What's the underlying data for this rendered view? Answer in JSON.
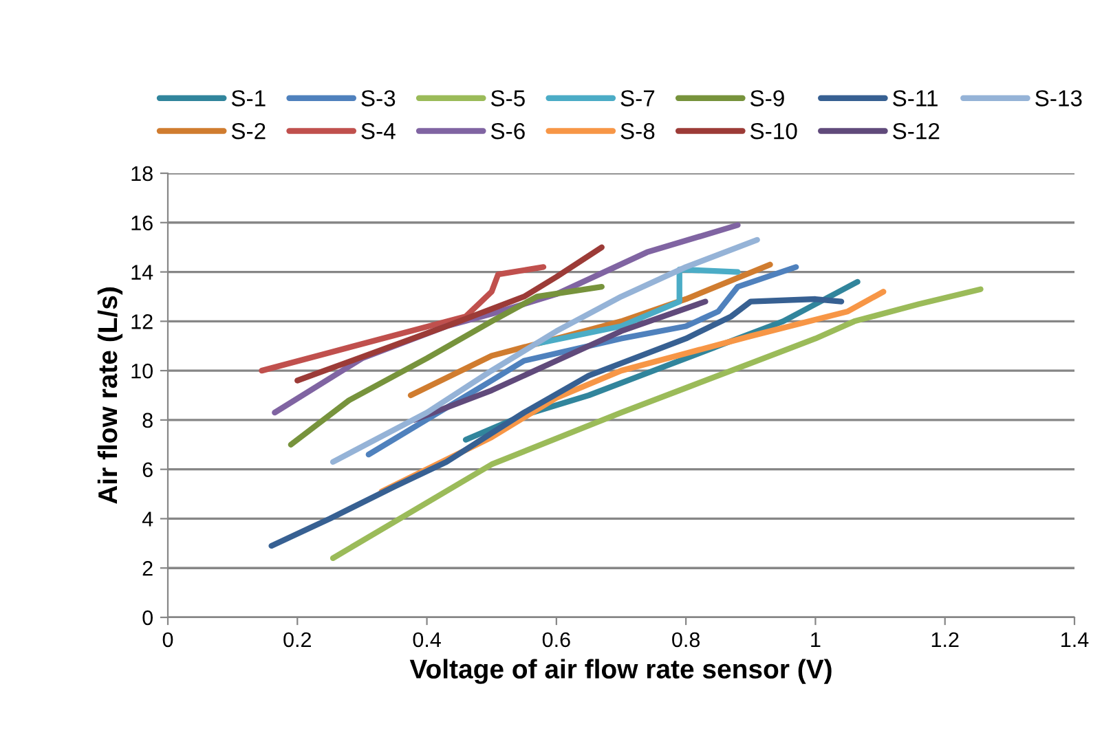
{
  "chart_data": {
    "type": "line",
    "xlabel": "Voltage of air flow rate sensor (V)",
    "ylabel": "Air flow rate (L/s)",
    "xlim": [
      0,
      1.4
    ],
    "xticks": [
      0,
      0.2,
      0.4,
      0.6,
      0.8,
      1,
      1.2,
      1.4
    ],
    "ylim": [
      0,
      18
    ],
    "yticks": [
      0,
      2,
      4,
      6,
      8,
      10,
      12,
      14,
      16,
      18
    ],
    "grid": "y",
    "legend": "top",
    "marker": "none",
    "line_style": "solid",
    "series": [
      {
        "name": "S-1",
        "color": "#31859c",
        "x": [
          0.46,
          0.55,
          0.65,
          0.75,
          0.85,
          0.95,
          1.065
        ],
        "values": [
          7.2,
          8.2,
          9.0,
          10.0,
          11.0,
          12.0,
          13.6
        ]
      },
      {
        "name": "S-2",
        "color": "#d07c2f",
        "x": [
          0.375,
          0.5,
          0.6,
          0.7,
          0.8,
          0.93
        ],
        "values": [
          9.0,
          10.6,
          11.3,
          12.0,
          12.9,
          14.3
        ]
      },
      {
        "name": "S-3",
        "color": "#4f81bd",
        "x": [
          0.31,
          0.5,
          0.55,
          0.7,
          0.8,
          0.85,
          0.88,
          0.97
        ],
        "values": [
          6.6,
          9.6,
          10.4,
          11.3,
          11.8,
          12.4,
          13.4,
          14.2
        ]
      },
      {
        "name": "S-4",
        "color": "#c0504d",
        "x": [
          0.145,
          0.46,
          0.5,
          0.51,
          0.58
        ],
        "values": [
          10.0,
          12.2,
          13.2,
          13.9,
          14.2
        ]
      },
      {
        "name": "S-5",
        "color": "#9bbb59",
        "x": [
          0.255,
          0.5,
          0.7,
          0.8,
          0.9,
          1.0,
          1.06,
          1.16,
          1.255
        ],
        "values": [
          2.4,
          6.2,
          8.3,
          9.3,
          10.3,
          11.3,
          12.0,
          12.7,
          13.3
        ]
      },
      {
        "name": "S-6",
        "color": "#8064a2",
        "x": [
          0.165,
          0.3,
          0.43,
          0.5,
          0.6,
          0.74,
          0.88
        ],
        "values": [
          8.3,
          10.5,
          11.8,
          12.3,
          13.1,
          14.8,
          15.9
        ]
      },
      {
        "name": "S-7",
        "color": "#4bacc6",
        "x": [
          0.57,
          0.7,
          0.79,
          0.79,
          0.88
        ],
        "values": [
          11.1,
          11.8,
          12.8,
          14.1,
          14.0
        ]
      },
      {
        "name": "S-8",
        "color": "#f79646",
        "x": [
          0.33,
          0.5,
          0.6,
          0.7,
          0.9,
          1.05,
          1.105
        ],
        "values": [
          5.1,
          7.3,
          8.9,
          10.0,
          11.4,
          12.4,
          13.2
        ]
      },
      {
        "name": "S-9",
        "color": "#77933c",
        "x": [
          0.19,
          0.28,
          0.4,
          0.5,
          0.57,
          0.67
        ],
        "values": [
          7.0,
          8.8,
          10.5,
          12.0,
          13.0,
          13.4
        ]
      },
      {
        "name": "S-10",
        "color": "#9c3b37",
        "x": [
          0.2,
          0.43,
          0.55,
          0.6,
          0.67
        ],
        "values": [
          9.6,
          11.8,
          13.0,
          13.8,
          15.0
        ]
      },
      {
        "name": "S-11",
        "color": "#376092",
        "x": [
          0.16,
          0.25,
          0.35,
          0.43,
          0.55,
          0.65,
          0.7,
          0.8,
          0.87,
          0.9,
          1.0,
          1.04
        ],
        "values": [
          2.9,
          4.0,
          5.3,
          6.3,
          8.3,
          9.8,
          10.3,
          11.3,
          12.2,
          12.8,
          12.9,
          12.8
        ]
      },
      {
        "name": "S-12",
        "color": "#604a7b",
        "x": [
          0.38,
          0.5,
          0.6,
          0.7,
          0.83
        ],
        "values": [
          8.0,
          9.2,
          10.4,
          11.6,
          12.8
        ]
      },
      {
        "name": "S-13",
        "color": "#95b3d7",
        "x": [
          0.255,
          0.4,
          0.5,
          0.6,
          0.7,
          0.8,
          0.91
        ],
        "values": [
          6.3,
          8.3,
          10.0,
          11.6,
          13.0,
          14.2,
          15.3
        ]
      }
    ]
  }
}
